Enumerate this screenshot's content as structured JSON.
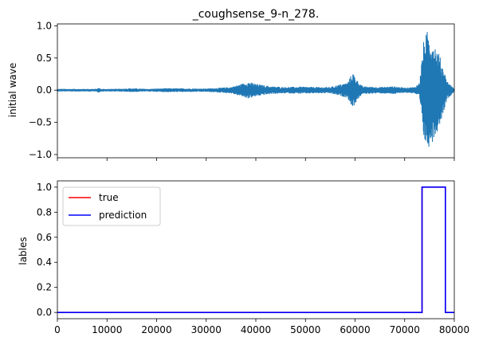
{
  "chart_data": [
    {
      "type": "line",
      "title": "_coughsense_9-n_278.",
      "xlabel": "",
      "ylabel": "initial wave",
      "xlim": [
        0,
        80000
      ],
      "ylim": [
        -1.05,
        1.03
      ],
      "yticks": [
        "1.0",
        "0.5",
        "0.0",
        "−0.5",
        "−1.0"
      ],
      "ytick_values": [
        1.0,
        0.5,
        0.0,
        -0.5,
        -1.0
      ],
      "xticks_shown": false,
      "grid": false,
      "color": "#1f77b4",
      "envelope": [
        {
          "x": 0,
          "amp": 0.02
        },
        {
          "x": 8000,
          "amp": 0.02
        },
        {
          "x": 8300,
          "amp": 0.04
        },
        {
          "x": 8800,
          "amp": 0.02
        },
        {
          "x": 12000,
          "amp": 0.02
        },
        {
          "x": 15000,
          "amp": 0.03
        },
        {
          "x": 18000,
          "amp": 0.02
        },
        {
          "x": 22000,
          "amp": 0.03
        },
        {
          "x": 30000,
          "amp": 0.025
        },
        {
          "x": 35000,
          "amp": 0.05
        },
        {
          "x": 38500,
          "amp": 0.13
        },
        {
          "x": 40500,
          "amp": 0.09
        },
        {
          "x": 43000,
          "amp": 0.06
        },
        {
          "x": 46000,
          "amp": 0.05
        },
        {
          "x": 49000,
          "amp": 0.055
        },
        {
          "x": 52000,
          "amp": 0.05
        },
        {
          "x": 55000,
          "amp": 0.05
        },
        {
          "x": 58500,
          "amp": 0.12
        },
        {
          "x": 59500,
          "amp": 0.28
        },
        {
          "x": 60500,
          "amp": 0.15
        },
        {
          "x": 61500,
          "amp": 0.06
        },
        {
          "x": 65000,
          "amp": 0.05
        },
        {
          "x": 68000,
          "amp": 0.06
        },
        {
          "x": 70000,
          "amp": 0.04
        },
        {
          "x": 72000,
          "amp": 0.05
        },
        {
          "x": 73000,
          "amp": 0.12
        },
        {
          "x": 73800,
          "amp": 0.75
        },
        {
          "x": 74500,
          "amp": 0.92
        },
        {
          "x": 75500,
          "amp": 0.82
        },
        {
          "x": 76800,
          "amp": 0.6
        },
        {
          "x": 77800,
          "amp": 0.35
        },
        {
          "x": 78500,
          "amp": 0.15
        },
        {
          "x": 80000,
          "amp": 0.02
        }
      ]
    },
    {
      "type": "line",
      "title": "",
      "xlabel": "",
      "ylabel": "lables",
      "xlim": [
        0,
        80000
      ],
      "ylim": [
        -0.05,
        1.05
      ],
      "xticks": [
        "0",
        "10000",
        "20000",
        "30000",
        "40000",
        "50000",
        "60000",
        "70000",
        "80000"
      ],
      "xtick_values": [
        0,
        10000,
        20000,
        30000,
        40000,
        50000,
        60000,
        70000,
        80000
      ],
      "yticks": [
        "1.0",
        "0.8",
        "0.6",
        "0.4",
        "0.2",
        "0.0"
      ],
      "ytick_values": [
        1.0,
        0.8,
        0.6,
        0.4,
        0.2,
        0.0
      ],
      "legend": "top-left",
      "grid": false,
      "series": [
        {
          "name": "true",
          "color": "#ff0000",
          "x": [
            0,
            73500,
            73500,
            78200,
            78200,
            80000
          ],
          "y": [
            0,
            0,
            1,
            1,
            0,
            0
          ]
        },
        {
          "name": "prediction",
          "color": "#0000ff",
          "x": [
            0,
            73500,
            73500,
            78200,
            78200,
            80000
          ],
          "y": [
            0,
            0,
            1,
            1,
            0,
            0
          ]
        }
      ]
    }
  ]
}
